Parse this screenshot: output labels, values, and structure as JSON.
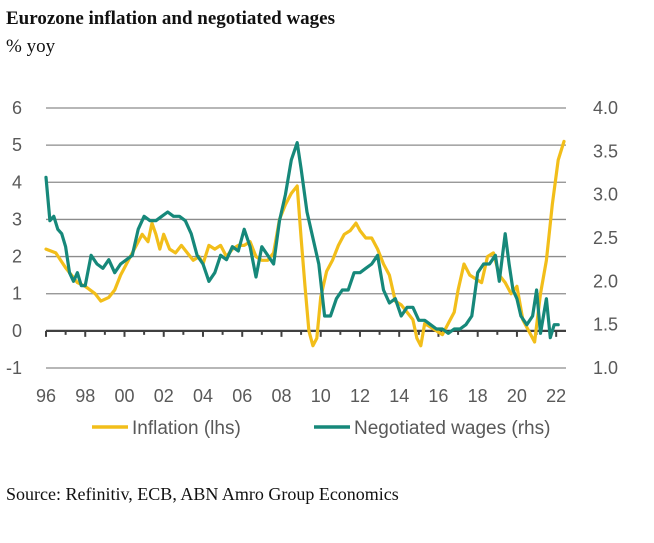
{
  "title": "Eurozone inflation and negotiated wages",
  "subtitle": "% yoy",
  "source": "Source: Refinitiv, ECB, ABN Amro Group Economics",
  "chart_data": {
    "type": "line",
    "left_axis": {
      "min": -1,
      "max": 6,
      "ticks": [
        "6",
        "5",
        "4",
        "3",
        "2",
        "1",
        "0",
        "-1"
      ],
      "values": [
        6,
        5,
        4,
        3,
        2,
        1,
        0,
        -1
      ]
    },
    "right_axis": {
      "min": 1.0,
      "max": 4.0,
      "ticks": [
        "4.0",
        "3.5",
        "3.0",
        "2.5",
        "2.0",
        "1.5",
        "1.0"
      ],
      "values": [
        4.0,
        3.5,
        3.0,
        2.5,
        2.0,
        1.5,
        1.0
      ]
    },
    "x_axis": {
      "min": 1996,
      "max": 2022.5,
      "tick_labels": [
        "96",
        "98",
        "00",
        "02",
        "04",
        "06",
        "08",
        "10",
        "12",
        "14",
        "16",
        "18",
        "20",
        "22"
      ],
      "tick_years": [
        1996,
        1998,
        2000,
        2002,
        2004,
        2006,
        2008,
        2010,
        2012,
        2014,
        2016,
        2018,
        2020,
        2022
      ]
    },
    "series": [
      {
        "name": "Inflation (lhs)",
        "axis": "left",
        "color": "#F2BE1A",
        "x": [
          1996.0,
          1996.5,
          1997.0,
          1997.3,
          1997.6,
          1998.0,
          1998.5,
          1998.8,
          1999.2,
          1999.5,
          1999.8,
          2000.2,
          2000.6,
          2000.9,
          2001.2,
          2001.4,
          2001.6,
          2001.8,
          2002.0,
          2002.3,
          2002.6,
          2002.9,
          2003.2,
          2003.5,
          2003.8,
          2004.0,
          2004.3,
          2004.6,
          2004.9,
          2005.2,
          2005.5,
          2005.8,
          2006.1,
          2006.4,
          2006.7,
          2007.0,
          2007.3,
          2007.6,
          2007.9,
          2008.2,
          2008.5,
          2008.8,
          2009.0,
          2009.2,
          2009.4,
          2009.6,
          2009.8,
          2010.0,
          2010.3,
          2010.6,
          2010.9,
          2011.2,
          2011.5,
          2011.8,
          2012.0,
          2012.3,
          2012.6,
          2012.9,
          2013.2,
          2013.5,
          2013.8,
          2014.1,
          2014.4,
          2014.7,
          2014.9,
          2015.1,
          2015.3,
          2015.6,
          2015.9,
          2016.2,
          2016.5,
          2016.8,
          2017.0,
          2017.3,
          2017.6,
          2017.9,
          2018.2,
          2018.5,
          2018.8,
          2019.1,
          2019.4,
          2019.7,
          2020.0,
          2020.3,
          2020.6,
          2020.9,
          2021.2,
          2021.5,
          2021.8,
          2022.1,
          2022.4
        ],
        "values": [
          2.2,
          2.1,
          1.7,
          1.5,
          1.3,
          1.2,
          1.0,
          0.8,
          0.9,
          1.1,
          1.5,
          1.9,
          2.3,
          2.6,
          2.4,
          2.9,
          2.6,
          2.2,
          2.6,
          2.2,
          2.1,
          2.3,
          2.1,
          1.9,
          2.0,
          1.8,
          2.3,
          2.2,
          2.3,
          2.0,
          2.2,
          2.3,
          2.3,
          2.4,
          2.0,
          1.9,
          1.9,
          2.1,
          3.0,
          3.4,
          3.7,
          3.9,
          2.5,
          1.2,
          0.0,
          -0.4,
          -0.2,
          0.9,
          1.6,
          1.9,
          2.3,
          2.6,
          2.7,
          2.9,
          2.7,
          2.5,
          2.5,
          2.2,
          1.8,
          1.5,
          0.8,
          0.7,
          0.5,
          0.3,
          -0.2,
          -0.4,
          0.2,
          0.1,
          0.0,
          -0.1,
          0.2,
          0.5,
          1.1,
          1.8,
          1.5,
          1.4,
          1.3,
          2.0,
          2.1,
          1.5,
          1.3,
          1.0,
          1.2,
          0.3,
          0.0,
          -0.3,
          1.0,
          1.9,
          3.4,
          4.6,
          5.1
        ]
      },
      {
        "name": "Negotiated wages (rhs)",
        "axis": "right",
        "color": "#16887A",
        "x": [
          1996.0,
          1996.2,
          1996.4,
          1996.6,
          1996.8,
          1997.0,
          1997.2,
          1997.4,
          1997.6,
          1997.8,
          1998.0,
          1998.3,
          1998.6,
          1998.9,
          1999.2,
          1999.5,
          1999.8,
          2000.1,
          2000.4,
          2000.7,
          2001.0,
          2001.3,
          2001.6,
          2001.9,
          2002.2,
          2002.5,
          2002.8,
          2003.1,
          2003.4,
          2003.7,
          2004.0,
          2004.3,
          2004.6,
          2004.9,
          2005.2,
          2005.5,
          2005.8,
          2006.1,
          2006.4,
          2006.7,
          2007.0,
          2007.3,
          2007.6,
          2007.9,
          2008.2,
          2008.5,
          2008.8,
          2009.0,
          2009.3,
          2009.6,
          2009.9,
          2010.2,
          2010.5,
          2010.8,
          2011.1,
          2011.4,
          2011.7,
          2012.0,
          2012.3,
          2012.6,
          2012.9,
          2013.2,
          2013.5,
          2013.8,
          2014.1,
          2014.4,
          2014.7,
          2015.0,
          2015.3,
          2015.6,
          2015.9,
          2016.2,
          2016.5,
          2016.8,
          2017.1,
          2017.4,
          2017.7,
          2018.0,
          2018.3,
          2018.6,
          2018.9,
          2019.1,
          2019.4,
          2019.6,
          2019.8,
          2020.0,
          2020.2,
          2020.5,
          2020.8,
          2021.0,
          2021.2,
          2021.5,
          2021.7,
          2021.9,
          2022.1
        ],
        "values": [
          3.2,
          2.7,
          2.75,
          2.6,
          2.55,
          2.4,
          2.1,
          2.0,
          2.1,
          1.95,
          1.95,
          2.3,
          2.2,
          2.15,
          2.25,
          2.1,
          2.2,
          2.25,
          2.3,
          2.6,
          2.75,
          2.7,
          2.7,
          2.75,
          2.8,
          2.75,
          2.75,
          2.7,
          2.55,
          2.3,
          2.2,
          2.0,
          2.1,
          2.3,
          2.25,
          2.4,
          2.35,
          2.6,
          2.4,
          2.05,
          2.4,
          2.3,
          2.2,
          2.7,
          3.0,
          3.4,
          3.6,
          3.3,
          2.8,
          2.5,
          2.2,
          1.6,
          1.6,
          1.8,
          1.9,
          1.9,
          2.1,
          2.1,
          2.15,
          2.2,
          2.3,
          1.9,
          1.75,
          1.8,
          1.6,
          1.7,
          1.7,
          1.55,
          1.55,
          1.5,
          1.45,
          1.45,
          1.4,
          1.45,
          1.45,
          1.5,
          1.6,
          2.1,
          2.2,
          2.2,
          2.3,
          2.0,
          2.55,
          2.2,
          1.9,
          1.8,
          1.6,
          1.5,
          1.6,
          1.9,
          1.4,
          1.8,
          1.35,
          1.5,
          1.5
        ]
      }
    ]
  }
}
